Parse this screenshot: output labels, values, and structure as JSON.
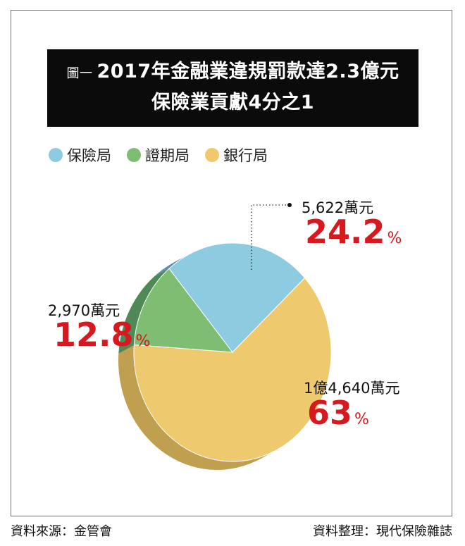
{
  "title": {
    "figure_label": "圖一",
    "line1": "2017年金融業違規罰款達2.3億元",
    "line2": "保險業貢獻4分之1"
  },
  "legend": [
    {
      "name": "保險局",
      "color": "#8ccbe0"
    },
    {
      "name": "證期局",
      "color": "#7fbe72"
    },
    {
      "name": "銀行局",
      "color": "#eec96e"
    }
  ],
  "chart_data": {
    "type": "pie",
    "style": "3d",
    "slices": [
      {
        "name": "保險局",
        "amount_label": "5,622萬元",
        "percent": 24.2,
        "percent_label": "24.2",
        "color": "#8ccbe0",
        "side_color": "#5e8fa6"
      },
      {
        "name": "證期局",
        "amount_label": "2,970萬元",
        "percent": 12.8,
        "percent_label": "12.8",
        "color": "#7fbe72",
        "side_color": "#4e8a56"
      },
      {
        "name": "銀行局",
        "amount_label": "1億4,640萬元",
        "percent": 63,
        "percent_label": "63",
        "color": "#eec96e",
        "side_color": "#c0a050"
      }
    ],
    "percent_sign": "%"
  },
  "footer": {
    "source": "資料來源：金管會",
    "compiled_by": "資料整理：現代保險雜誌"
  }
}
